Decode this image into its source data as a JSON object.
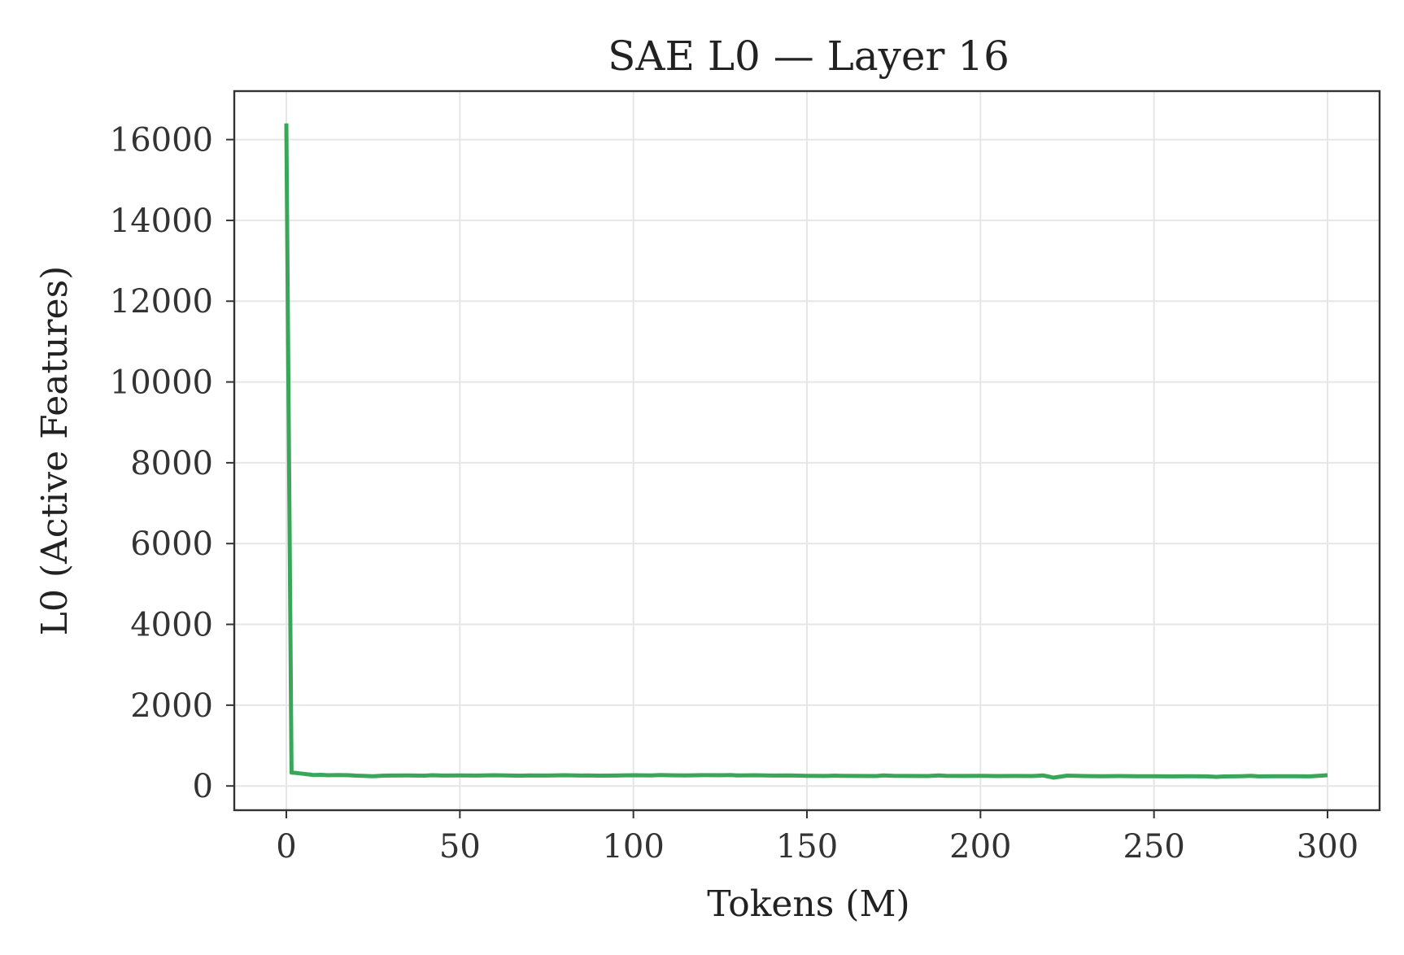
{
  "chart_data": {
    "type": "line",
    "title": "SAE L0 — Layer 16",
    "xlabel": "Tokens (M)",
    "ylabel": "L0 (Active Features)",
    "xlim": [
      -15,
      315
    ],
    "ylim": [
      -600,
      17200
    ],
    "xticks": [
      0,
      50,
      100,
      150,
      200,
      250,
      300
    ],
    "yticks": [
      0,
      2000,
      4000,
      6000,
      8000,
      10000,
      12000,
      14000,
      16000
    ],
    "grid": true,
    "legend": "none",
    "series": [
      {
        "color": "#3aa65a",
        "x": [
          0,
          1.5,
          3,
          5,
          8,
          10,
          12,
          15,
          18,
          20,
          22,
          25,
          28,
          30,
          35,
          40,
          42,
          45,
          50,
          55,
          60,
          65,
          68,
          70,
          75,
          80,
          85,
          87,
          90,
          95,
          100,
          105,
          108,
          110,
          115,
          120,
          125,
          128,
          130,
          135,
          140,
          145,
          150,
          155,
          158,
          160,
          165,
          170,
          172,
          175,
          180,
          185,
          188,
          190,
          195,
          200,
          205,
          210,
          215,
          218,
          220,
          221,
          225,
          230,
          235,
          240,
          245,
          250,
          255,
          260,
          265,
          268,
          270,
          275,
          278,
          280,
          285,
          290,
          295,
          300
        ],
        "y": [
          16400,
          330,
          320,
          300,
          270,
          275,
          265,
          270,
          265,
          255,
          250,
          240,
          255,
          258,
          260,
          255,
          265,
          258,
          262,
          258,
          265,
          258,
          255,
          262,
          258,
          265,
          258,
          262,
          255,
          258,
          265,
          262,
          270,
          265,
          262,
          268,
          265,
          270,
          262,
          265,
          258,
          262,
          252,
          248,
          255,
          252,
          248,
          245,
          262,
          250,
          248,
          245,
          262,
          252,
          248,
          250,
          245,
          248,
          245,
          262,
          225,
          205,
          255,
          245,
          242,
          245,
          242,
          240,
          238,
          242,
          238,
          225,
          235,
          240,
          250,
          238,
          242,
          240,
          238,
          265
        ]
      }
    ]
  }
}
